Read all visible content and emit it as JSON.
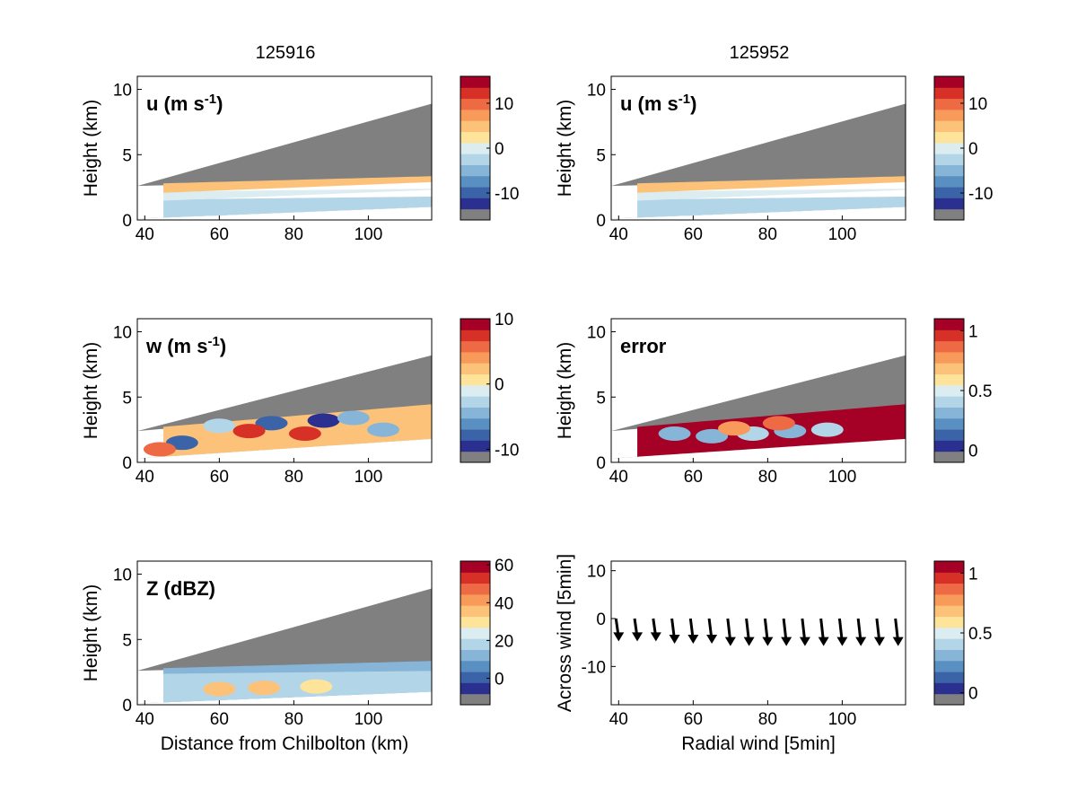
{
  "figure": {
    "column_titles": [
      "125916",
      "125952"
    ],
    "bottom_left_xlabel": "Distance from Chilbolton (km)",
    "arrow_panel_xlabel": "Radial wind [5min]",
    "arrow_panel_ylabel": "Across wind [5min]",
    "height_ylabel": "Height (km)",
    "colors": {
      "no_data_gray": "#808080",
      "palette": [
        "#2b2f8f",
        "#3b63a8",
        "#5a8fc2",
        "#86b5d8",
        "#b3d5e8",
        "#dcedf2",
        "#fde49a",
        "#fcc27a",
        "#f89b5a",
        "#ee6a45",
        "#d73027",
        "#a50026"
      ]
    }
  },
  "chart_data": [
    {
      "type": "heatmap",
      "id": "u_125916",
      "column_title": "125916",
      "panel_label": "u (m s",
      "panel_label_sup": "-1",
      "panel_label_end": ")",
      "ylabel": "Height (km)",
      "xlabel": "",
      "xlim": [
        38,
        117
      ],
      "ylim": [
        0,
        11
      ],
      "xticks": [
        "40",
        "60",
        "80",
        "100"
      ],
      "yticks": [
        "0",
        "5",
        "10"
      ],
      "colorbar_ticks": [
        "10",
        "0",
        "-10"
      ],
      "colorbar_range": [
        -16,
        16
      ],
      "beam_top_km": [
        2.6,
        8.9
      ],
      "beam_bottom_km": [
        0.1,
        1.0
      ],
      "echo_top_km": [
        2.6,
        3.2
      ],
      "layers": [
        {
          "from_km": 0.1,
          "to_km": 1.4,
          "value": -5
        },
        {
          "from_km": 1.4,
          "to_km": 2.0,
          "value": -2
        },
        {
          "from_km": 2.0,
          "to_km": 3.2,
          "value": 4
        }
      ]
    },
    {
      "type": "heatmap",
      "id": "u_125952",
      "column_title": "125952",
      "panel_label": "u (m s",
      "panel_label_sup": "-1",
      "panel_label_end": ")",
      "ylabel": "Height (km)",
      "xlabel": "",
      "xlim": [
        38,
        117
      ],
      "ylim": [
        0,
        11
      ],
      "xticks": [
        "40",
        "60",
        "80",
        "100"
      ],
      "yticks": [
        "0",
        "5",
        "10"
      ],
      "colorbar_ticks": [
        "10",
        "0",
        "-10"
      ],
      "colorbar_range": [
        -16,
        16
      ],
      "beam_top_km": [
        2.6,
        8.9
      ],
      "beam_bottom_km": [
        0.1,
        1.0
      ],
      "echo_top_km": [
        2.6,
        3.2
      ],
      "layers": [
        {
          "from_km": 0.1,
          "to_km": 1.4,
          "value": -5
        },
        {
          "from_km": 1.4,
          "to_km": 2.0,
          "value": -2
        },
        {
          "from_km": 2.0,
          "to_km": 3.2,
          "value": 4
        }
      ]
    },
    {
      "type": "heatmap",
      "id": "w",
      "column_title": "",
      "panel_label": "w (m s",
      "panel_label_sup": "-1",
      "panel_label_end": ")",
      "ylabel": "Height (km)",
      "xlabel": "",
      "xlim": [
        38,
        117
      ],
      "ylim": [
        0,
        11
      ],
      "xticks": [
        "40",
        "60",
        "80",
        "100"
      ],
      "yticks": [
        "0",
        "5",
        "10"
      ],
      "colorbar_ticks": [
        "10",
        "0",
        "-10"
      ],
      "colorbar_range": [
        -12,
        10
      ],
      "beam_top_km": [
        2.4,
        8.2
      ],
      "beam_bottom_km": [
        0.3,
        1.8
      ],
      "echo_top_km": [
        2.4,
        4.3
      ],
      "layers": [
        {
          "from_km": 0.3,
          "to_km": 4.3,
          "value": 2
        }
      ],
      "blobs": [
        {
          "x_km": 88,
          "z_km": 3.2,
          "value": -11
        },
        {
          "x_km": 74,
          "z_km": 3.0,
          "value": -10
        },
        {
          "x_km": 96,
          "z_km": 3.4,
          "value": -6
        },
        {
          "x_km": 60,
          "z_km": 2.8,
          "value": -4
        },
        {
          "x_km": 50,
          "z_km": 1.5,
          "value": -10
        },
        {
          "x_km": 68,
          "z_km": 2.4,
          "value": 7
        },
        {
          "x_km": 83,
          "z_km": 2.2,
          "value": 8
        },
        {
          "x_km": 104,
          "z_km": 2.5,
          "value": -5
        },
        {
          "x_km": 44,
          "z_km": 1.0,
          "value": 5
        }
      ]
    },
    {
      "type": "heatmap",
      "id": "error",
      "column_title": "",
      "panel_label": "error",
      "panel_label_sup": "",
      "panel_label_end": "",
      "ylabel": "Height (km)",
      "xlabel": "",
      "xlim": [
        38,
        117
      ],
      "ylim": [
        0,
        11
      ],
      "xticks": [
        "40",
        "60",
        "80",
        "100"
      ],
      "yticks": [
        "0",
        "5",
        "10"
      ],
      "colorbar_ticks": [
        "1",
        "0.5",
        "0"
      ],
      "colorbar_range": [
        -0.1,
        1.1
      ],
      "beam_top_km": [
        2.4,
        8.2
      ],
      "beam_bottom_km": [
        0.3,
        1.8
      ],
      "echo_top_km": [
        2.4,
        4.3
      ],
      "layers": [
        {
          "from_km": 0.3,
          "to_km": 4.3,
          "value": 1.05
        }
      ],
      "blobs": [
        {
          "x_km": 55,
          "z_km": 2.2,
          "value": 0.2
        },
        {
          "x_km": 65,
          "z_km": 2.0,
          "value": 0.25
        },
        {
          "x_km": 76,
          "z_km": 2.2,
          "value": 0.3
        },
        {
          "x_km": 86,
          "z_km": 2.4,
          "value": 0.25
        },
        {
          "x_km": 96,
          "z_km": 2.5,
          "value": 0.3
        },
        {
          "x_km": 71,
          "z_km": 2.6,
          "value": 0.8
        },
        {
          "x_km": 83,
          "z_km": 3.0,
          "value": 0.85
        }
      ]
    },
    {
      "type": "heatmap",
      "id": "Z",
      "column_title": "",
      "panel_label": "Z (dBZ)",
      "panel_label_sup": "",
      "panel_label_end": "",
      "ylabel": "Height (km)",
      "xlabel": "Distance from Chilbolton (km)",
      "xlim": [
        38,
        117
      ],
      "ylim": [
        0,
        11
      ],
      "xticks": [
        "40",
        "60",
        "80",
        "100"
      ],
      "yticks": [
        "0",
        "5",
        "10"
      ],
      "colorbar_ticks": [
        "60",
        "40",
        "20",
        "0"
      ],
      "colorbar_range": [
        -14,
        62
      ],
      "beam_top_km": [
        2.6,
        8.9
      ],
      "beam_bottom_km": [
        0.1,
        1.0
      ],
      "echo_top_km": [
        2.6,
        3.2
      ],
      "layers": [
        {
          "from_km": 0.1,
          "to_km": 3.2,
          "value": 8
        },
        {
          "from_km": 0.1,
          "to_km": 2.2,
          "value": 16
        }
      ],
      "blobs": [
        {
          "x_km": 60,
          "z_km": 1.2,
          "value": 34
        },
        {
          "x_km": 72,
          "z_km": 1.3,
          "value": 36
        },
        {
          "x_km": 86,
          "z_km": 1.4,
          "value": 26
        }
      ]
    },
    {
      "type": "scatter",
      "id": "arrows",
      "column_title": "",
      "panel_label": "",
      "panel_label_sup": "",
      "panel_label_end": "",
      "xlabel": "Radial wind [5min]",
      "ylabel": "Across wind [5min]",
      "xlim": [
        38,
        117
      ],
      "ylim": [
        -18,
        12
      ],
      "xticks": [
        "40",
        "60",
        "80",
        "100"
      ],
      "yticks": [
        "10",
        "0",
        "-10"
      ],
      "colorbar_ticks": [
        "1",
        "0.5",
        "0"
      ],
      "colorbar_range": [
        -0.1,
        1.1
      ],
      "x": [
        40,
        45,
        50,
        55,
        60,
        65,
        70,
        75,
        80,
        85,
        90,
        95,
        100,
        105,
        110,
        115
      ],
      "y": [
        -4,
        -4,
        -4,
        -4.5,
        -4.5,
        -4.5,
        -5,
        -5,
        -5,
        -5,
        -5,
        -5,
        -5,
        -5,
        -5,
        -5
      ]
    }
  ]
}
